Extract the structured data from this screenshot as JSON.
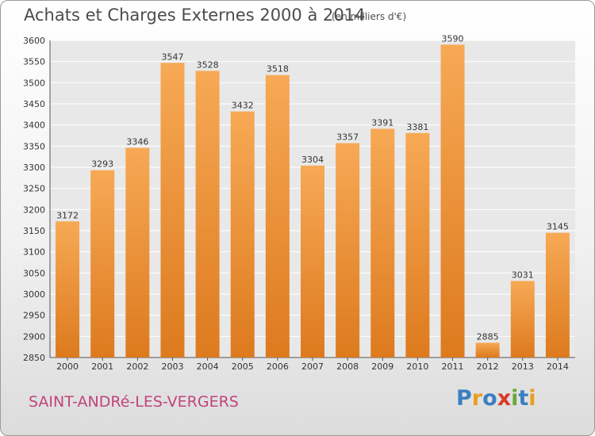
{
  "header": {
    "title": "Achats et Charges Externes 2000 à 2014",
    "subtitle": "(en milliers d'€)"
  },
  "footer": {
    "place": "SAINT-ANDRé-LES-VERGERS",
    "logo_text": "Proxiti",
    "logo_colors": [
      "#3a7fc1",
      "#e5a020",
      "#3a7fc1",
      "#d83a2a",
      "#6aa83a",
      "#3a7fc1",
      "#e5a020"
    ]
  },
  "colors": {
    "bar_light": "#f7a955",
    "bar_dark": "#dd7a1e",
    "plot_bg": "#e8e8e8",
    "grid": "#ffffff",
    "text": "#333333"
  },
  "chart_data": {
    "type": "bar",
    "title": "Achats et Charges Externes 2000 à 2014",
    "subtitle": "(en milliers d'€)",
    "categories": [
      "2000",
      "2001",
      "2002",
      "2003",
      "2004",
      "2005",
      "2006",
      "2007",
      "2008",
      "2009",
      "2010",
      "2011",
      "2012",
      "2013",
      "2014"
    ],
    "values": [
      3172,
      3293,
      3346,
      3547,
      3528,
      3432,
      3518,
      3304,
      3357,
      3391,
      3381,
      3590,
      2885,
      3031,
      3145
    ],
    "ylim": [
      2850,
      3600
    ],
    "yticks": [
      2850,
      2900,
      2950,
      3000,
      3050,
      3100,
      3150,
      3200,
      3250,
      3300,
      3350,
      3400,
      3450,
      3500,
      3550,
      3600
    ],
    "grid": true,
    "xlabel": "",
    "ylabel": ""
  }
}
